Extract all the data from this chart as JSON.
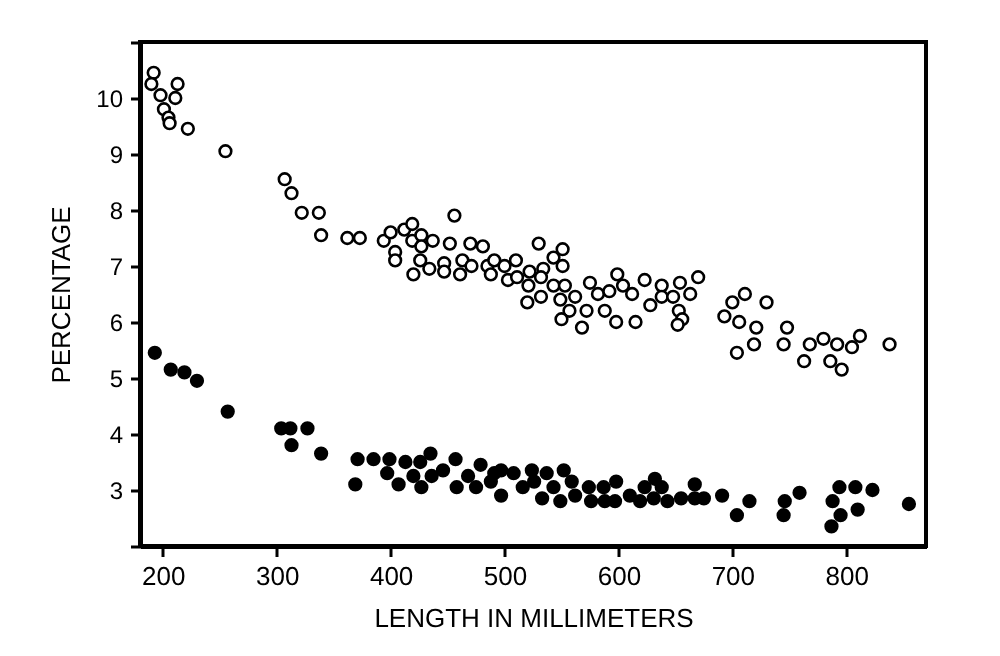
{
  "chart_data": {
    "type": "scatter",
    "xlabel": "LENGTH IN MILLIMETERS",
    "ylabel": "PERCENTAGE",
    "xlim": [
      180,
      870
    ],
    "xticks": [
      200,
      300,
      400,
      500,
      600,
      700,
      800
    ],
    "ylim": [
      2,
      11
    ],
    "yticks": [
      {
        "value": 2,
        "label": null
      },
      3,
      4,
      5,
      6,
      7,
      8,
      9,
      10,
      {
        "value": 11,
        "label": null
      }
    ],
    "grid": false,
    "marker": "circle",
    "series": [
      {
        "color": "#ffffff",
        "x": [
          192,
          190,
          198,
          213,
          211,
          201,
          205,
          206,
          222,
          255,
          307,
          313,
          322,
          337,
          339,
          362,
          373,
          394,
          400,
          412,
          419,
          404,
          419,
          427,
          437,
          427,
          426,
          420,
          434,
          452,
          456,
          470,
          481,
          447,
          447,
          463,
          461,
          471,
          485,
          488,
          404,
          491,
          500,
          510,
          503,
          511,
          522,
          521,
          520,
          530,
          534,
          532,
          532,
          543,
          551,
          551,
          543,
          553,
          549,
          562,
          557,
          550,
          568,
          572,
          575,
          582,
          588,
          592,
          599,
          604,
          612,
          598,
          615,
          623,
          628,
          638,
          638,
          648,
          654,
          663,
          670,
          653,
          656,
          652,
          693,
          700,
          711,
          706,
          704,
          721,
          719,
          730,
          748,
          745,
          763,
          768,
          780,
          786,
          792,
          796,
          805,
          812,
          838
        ],
        "values": [
          10.45,
          10.25,
          10.05,
          10.25,
          10.0,
          9.8,
          9.65,
          9.55,
          9.45,
          9.05,
          8.55,
          8.3,
          7.95,
          7.95,
          7.55,
          7.5,
          7.5,
          7.45,
          7.6,
          7.65,
          7.75,
          7.25,
          7.45,
          7.55,
          7.45,
          7.35,
          7.1,
          6.85,
          6.95,
          7.4,
          7.9,
          7.4,
          7.35,
          7.05,
          6.9,
          7.1,
          6.85,
          7.0,
          7.0,
          6.85,
          7.1,
          7.1,
          7.0,
          7.1,
          6.75,
          6.8,
          6.9,
          6.65,
          6.35,
          7.4,
          6.95,
          6.8,
          6.45,
          7.15,
          7.3,
          7.0,
          6.65,
          6.65,
          6.4,
          6.45,
          6.2,
          6.05,
          5.9,
          6.2,
          6.7,
          6.5,
          6.2,
          6.55,
          6.85,
          6.65,
          6.5,
          6.0,
          6.0,
          6.75,
          6.3,
          6.65,
          6.45,
          6.45,
          6.7,
          6.5,
          6.8,
          6.2,
          6.05,
          5.95,
          6.1,
          6.35,
          6.5,
          6.0,
          5.45,
          5.9,
          5.6,
          6.35,
          5.9,
          5.6,
          5.3,
          5.6,
          5.7,
          5.3,
          5.6,
          5.15,
          5.55,
          5.75,
          5.6
        ]
      },
      {
        "color": "#000000",
        "x": [
          193,
          207,
          219,
          230,
          257,
          304,
          312,
          313,
          327,
          339,
          369,
          371,
          385,
          399,
          397,
          407,
          413,
          420,
          426,
          427,
          435,
          436,
          446,
          457,
          458,
          468,
          475,
          479,
          488,
          491,
          497,
          497,
          508,
          516,
          524,
          526,
          537,
          543,
          533,
          552,
          549,
          559,
          562,
          574,
          576,
          587,
          588,
          598,
          597,
          610,
          619,
          623,
          632,
          631,
          638,
          643,
          655,
          667,
          667,
          675,
          691,
          704,
          715,
          746,
          745,
          759,
          788,
          794,
          795,
          787,
          808,
          810,
          823,
          855
        ],
        "values": [
          5.45,
          5.15,
          5.1,
          4.95,
          4.4,
          4.1,
          4.1,
          3.8,
          4.1,
          3.65,
          3.1,
          3.55,
          3.55,
          3.55,
          3.3,
          3.1,
          3.5,
          3.25,
          3.5,
          3.05,
          3.65,
          3.25,
          3.35,
          3.55,
          3.05,
          3.25,
          3.05,
          3.45,
          3.15,
          3.3,
          3.35,
          2.9,
          3.3,
          3.05,
          3.35,
          3.15,
          3.3,
          3.05,
          2.85,
          3.35,
          2.8,
          3.15,
          2.9,
          3.05,
          2.8,
          3.05,
          2.8,
          3.15,
          2.8,
          2.9,
          2.8,
          3.05,
          3.2,
          2.85,
          3.05,
          2.8,
          2.85,
          3.1,
          2.85,
          2.85,
          2.9,
          2.55,
          2.8,
          2.8,
          2.55,
          2.95,
          2.8,
          3.05,
          2.55,
          2.35,
          3.05,
          2.65,
          3.0,
          2.75
        ]
      }
    ]
  }
}
